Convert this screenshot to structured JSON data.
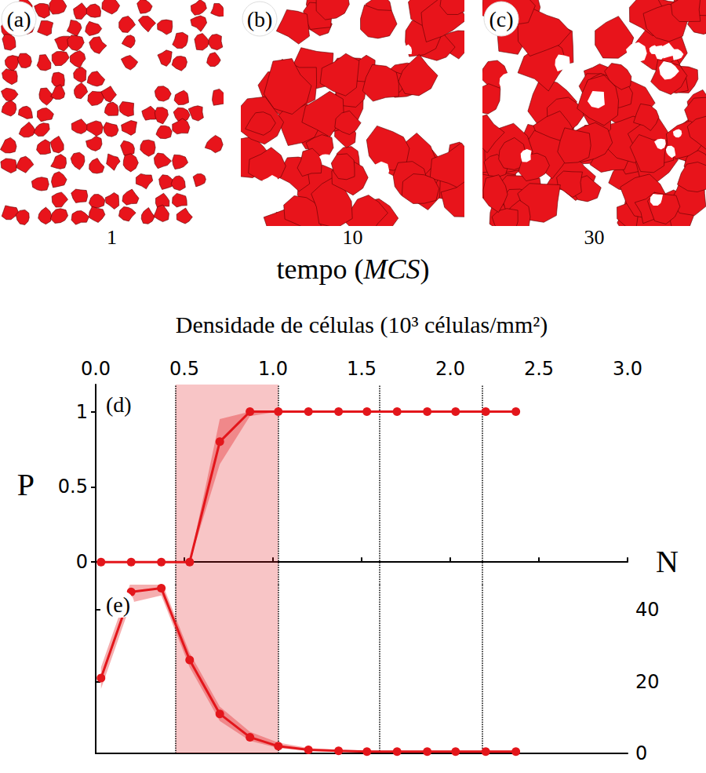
{
  "panels": [
    {
      "label": "(a)",
      "time": 1
    },
    {
      "label": "(b)",
      "time": 10
    },
    {
      "label": "(c)",
      "time": 30
    }
  ],
  "panels_axis_label": "tempo (MCS)",
  "chart_data": [
    {
      "type": "line",
      "label": "(d)",
      "xlabel": "Densidade de células (10³ células/mm²)",
      "ylabel": "P",
      "x": [
        0.03,
        0.2,
        0.37,
        0.53,
        0.7,
        0.87,
        1.03,
        1.2,
        1.37,
        1.53,
        1.7,
        1.87,
        2.03,
        2.2,
        2.37
      ],
      "values": [
        0,
        0,
        0,
        0,
        0.8,
        1,
        1,
        1,
        1,
        1,
        1,
        1,
        1,
        1,
        1
      ],
      "lower": [
        0,
        0,
        0,
        0,
        0.65,
        0.97,
        1,
        1,
        1,
        1,
        1,
        1,
        1,
        1,
        1
      ],
      "upper": [
        0,
        0,
        0,
        0,
        0.95,
        1,
        1,
        1,
        1,
        1,
        1,
        1,
        1,
        1,
        1
      ],
      "color": "#e3161b",
      "marker": "circle",
      "xlim": [
        0,
        3
      ],
      "xticks": [
        {
          "value": 0,
          "label": "0.0"
        },
        0.5,
        {
          "value": 1,
          "label": "1.0"
        },
        1.5,
        {
          "value": 2,
          "label": "2.0"
        },
        2.5,
        {
          "value": 3,
          "label": "3.0"
        }
      ],
      "ylim": [
        -0.15,
        1.18
      ],
      "yticks": [
        0,
        0.5,
        1
      ],
      "shaded_region": [
        0.45,
        1.03
      ],
      "vlines": [
        0.45,
        1.03,
        1.6,
        2.18
      ],
      "grid": false
    },
    {
      "type": "line",
      "label": "(e)",
      "ylabel": "N",
      "x": [
        0.03,
        0.2,
        0.37,
        0.53,
        0.7,
        0.87,
        1.03,
        1.2,
        1.37,
        1.53,
        1.7,
        1.87,
        2.03,
        2.2,
        2.37
      ],
      "values": [
        21,
        45,
        46,
        26,
        11,
        4.5,
        2,
        1,
        0.7,
        0.5,
        0.5,
        0.5,
        0.5,
        0.5,
        0.5
      ],
      "lower": [
        18,
        42,
        44,
        24,
        9,
        3.5,
        1.5,
        0.7,
        0.4,
        0.3,
        0.3,
        0.3,
        0.3,
        0.3,
        0.3
      ],
      "upper": [
        24,
        48,
        48,
        28,
        13,
        6,
        3,
        1.5,
        1,
        0.8,
        0.8,
        0.8,
        0.8,
        0.8,
        0.8
      ],
      "color": "#e3161b",
      "marker": "circle",
      "xlim": [
        0,
        3
      ],
      "ylim": [
        0,
        47
      ],
      "yticks": [
        0,
        20,
        40
      ],
      "shaded_region": [
        0.45,
        1.03
      ],
      "vlines": [
        0.45,
        1.03,
        1.6,
        2.18
      ],
      "tick_labels": "y",
      "grid": false
    }
  ]
}
